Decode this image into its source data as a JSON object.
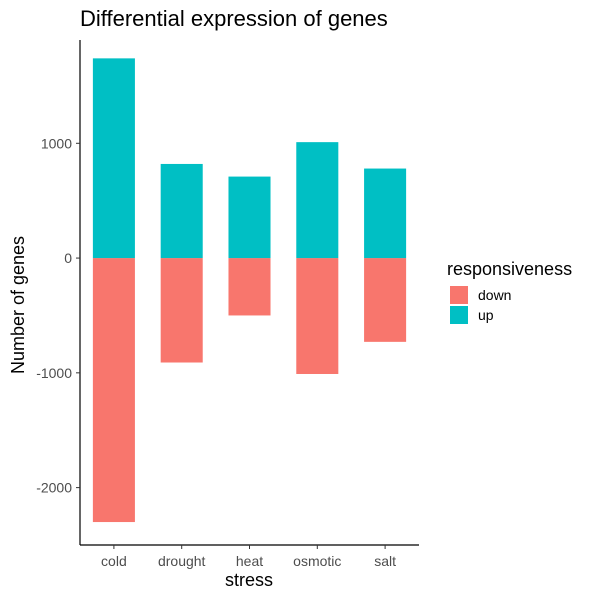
{
  "chart_data": {
    "type": "bar",
    "stacked": true,
    "diverging": true,
    "title": "Differential expression of genes",
    "xlabel": "stress",
    "ylabel": "Number of genes",
    "categories": [
      "cold",
      "drought",
      "heat",
      "osmotic",
      "salt"
    ],
    "series": [
      {
        "name": "down",
        "values": [
          -2300,
          -910,
          -500,
          -1010,
          -730
        ]
      },
      {
        "name": "up",
        "values": [
          1740,
          820,
          710,
          1010,
          780
        ]
      }
    ],
    "ylim": [
      -2500,
      1900
    ],
    "yticks": [
      -2000,
      -1000,
      0,
      1000
    ],
    "ytick_labels": [
      "-2000",
      "-1000",
      "0",
      "1000"
    ],
    "grid": false,
    "legend": {
      "title": "responsiveness",
      "position": "right",
      "items": [
        {
          "label": "down",
          "color": "#F8766D"
        },
        {
          "label": "up",
          "color": "#00BFC4"
        }
      ]
    },
    "colors": {
      "down": "#F8766D",
      "up": "#00BFC4"
    }
  }
}
